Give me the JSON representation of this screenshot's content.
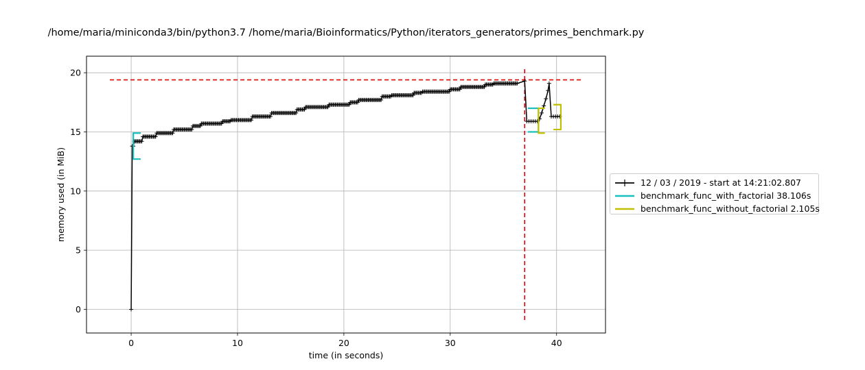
{
  "chart_data": {
    "type": "line",
    "title": "/home/maria/miniconda3/bin/python3.7 /home/maria/Bioinformatics/Python/iterators_generators/primes_benchmark.py",
    "xlabel": "time (in seconds)",
    "ylabel": "memory used (in MiB)",
    "xlim": [
      -4.2,
      44.6
    ],
    "ylim": [
      -2.0,
      21.4
    ],
    "xticks": [
      0,
      10,
      20,
      30,
      40
    ],
    "yticks": [
      0,
      5,
      10,
      15,
      20
    ],
    "grid": true,
    "legend_position": "right",
    "series": [
      {
        "name": "12 / 03 / 2019 - start at 14:21:02.807",
        "color": "#000000",
        "marker": "+",
        "start": [
          0.0,
          0.0
        ],
        "x_start": 0.1,
        "x_step": 0.1,
        "x_step_count": 363,
        "steps": [
          [
            0.1,
            13.8
          ],
          [
            0.3,
            14.2
          ],
          [
            1.1,
            14.6
          ],
          [
            2.4,
            14.9
          ],
          [
            4.0,
            15.2
          ],
          [
            5.8,
            15.5
          ],
          [
            6.6,
            15.7
          ],
          [
            8.6,
            15.9
          ],
          [
            9.4,
            16.0
          ],
          [
            11.4,
            16.3
          ],
          [
            13.2,
            16.6
          ],
          [
            15.6,
            16.9
          ],
          [
            16.4,
            17.1
          ],
          [
            18.6,
            17.3
          ],
          [
            20.6,
            17.5
          ],
          [
            21.4,
            17.7
          ],
          [
            23.6,
            18.0
          ],
          [
            24.5,
            18.1
          ],
          [
            26.6,
            18.3
          ],
          [
            27.4,
            18.4
          ],
          [
            30.0,
            18.6
          ],
          [
            31.0,
            18.8
          ],
          [
            33.3,
            19.0
          ],
          [
            34.1,
            19.1
          ],
          [
            36.4,
            19.2
          ],
          [
            36.9,
            19.3
          ]
        ],
        "tail": [
          [
            37.0,
            19.3
          ],
          [
            37.2,
            15.9
          ],
          [
            37.4,
            15.9
          ],
          [
            37.6,
            15.9
          ],
          [
            37.8,
            15.9
          ],
          [
            38.0,
            15.9
          ],
          [
            38.2,
            15.9
          ],
          [
            38.4,
            16.1
          ],
          [
            38.6,
            16.6
          ],
          [
            38.8,
            17.2
          ],
          [
            39.0,
            17.8
          ],
          [
            39.2,
            18.5
          ],
          [
            39.3,
            19.1
          ],
          [
            39.5,
            16.3
          ],
          [
            39.7,
            16.3
          ],
          [
            39.9,
            16.3
          ],
          [
            40.1,
            16.3
          ],
          [
            40.3,
            16.3
          ]
        ]
      }
    ],
    "function_brackets": [
      {
        "name": "benchmark_func_with_factorial 38.106s",
        "color": "#17bfbf",
        "start": {
          "x": 0.2,
          "y": 12.7,
          "x_end": 0.9
        },
        "end": {
          "x": 38.3,
          "y": 15.0,
          "x_start": 37.3
        },
        "top_y": 14.9,
        "end_top_y": 17.0
      },
      {
        "name": "benchmark_func_without_factorial 2.105s",
        "color": "#bfbf00",
        "start": {
          "x": 38.3,
          "y": 14.9,
          "x_end": 38.9
        },
        "end": {
          "x": 40.4,
          "y": 15.2,
          "x_start": 39.7
        },
        "top_y": 17.0,
        "end_top_y": 17.3
      }
    ],
    "peak_markers": {
      "color": "#dd0000",
      "horizontal_y": 19.4,
      "horizontal_x": [
        -2.0,
        42.4
      ],
      "vertical_x": 37.0,
      "vertical_y": [
        -0.9,
        20.3
      ]
    }
  }
}
